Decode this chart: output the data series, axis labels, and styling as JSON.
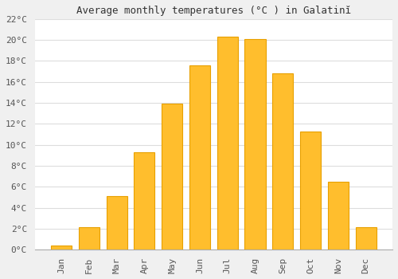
{
  "title": "Average monthly temperatures (°C ) in Galatinĭ",
  "months": [
    "Jan",
    "Feb",
    "Mar",
    "Apr",
    "May",
    "Jun",
    "Jul",
    "Aug",
    "Sep",
    "Oct",
    "Nov",
    "Dec"
  ],
  "values": [
    0.4,
    2.1,
    5.1,
    9.3,
    13.9,
    17.6,
    20.3,
    20.1,
    16.8,
    11.3,
    6.5,
    2.1
  ],
  "bar_color": "#FFBE2D",
  "bar_edge_color": "#E8A000",
  "ylim": [
    0,
    22
  ],
  "yticks": [
    0,
    2,
    4,
    6,
    8,
    10,
    12,
    14,
    16,
    18,
    20,
    22
  ],
  "ytick_labels": [
    "0°C",
    "2°C",
    "4°C",
    "6°C",
    "8°C",
    "10°C",
    "12°C",
    "14°C",
    "16°C",
    "18°C",
    "20°C",
    "22°C"
  ],
  "plot_bg_color": "#ffffff",
  "figure_bg_color": "#f0f0f0",
  "grid_color": "#dddddd",
  "title_fontsize": 9,
  "tick_fontsize": 8,
  "bar_width": 0.75
}
